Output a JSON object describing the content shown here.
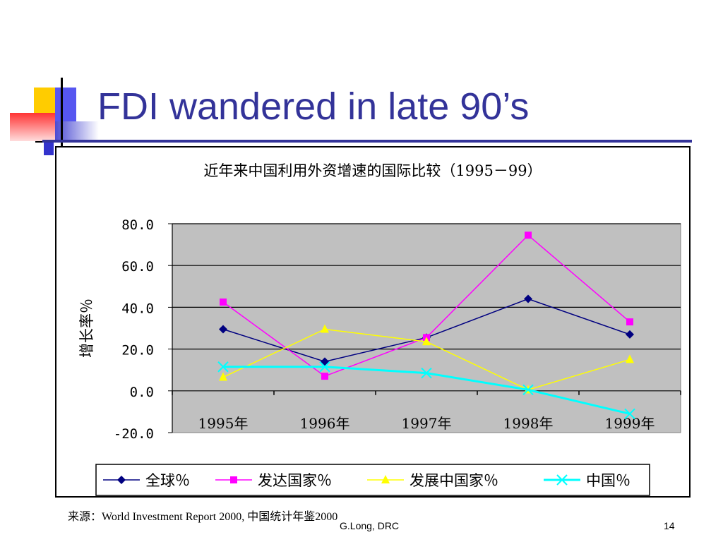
{
  "slide": {
    "title": "FDI wandered in late 90’s",
    "source_note": "来源：World Investment Report 2000,  中国统计年鉴2000",
    "footer_author": "G.Long, DRC",
    "page_number": "14",
    "colors": {
      "title": "#333399",
      "deco_yellow": "#ffcc00",
      "deco_blue": "#3333cc",
      "deco_red": "#ff3333"
    }
  },
  "chart_data": {
    "type": "line",
    "title": "近年来中国利用外资增速的国际比较（1995－99）",
    "xlabel": "",
    "ylabel": "增长率％",
    "categories": [
      "1995年",
      "1996年",
      "1997年",
      "1998年",
      "1999年"
    ],
    "ylim": [
      -20,
      80
    ],
    "yticks": [
      "80.0",
      "60.0",
      "40.0",
      "20.0",
      "0.0",
      "-20.0"
    ],
    "ytick_values": [
      80,
      60,
      40,
      20,
      0,
      -20
    ],
    "grid": true,
    "legend_position": "bottom",
    "plot_background": "#c0c0c0",
    "series": [
      {
        "name": "全球％",
        "values": [
          29.5,
          14,
          25.5,
          44,
          27
        ],
        "color": "#000080",
        "marker": "diamond"
      },
      {
        "name": "发达国家％",
        "values": [
          42.5,
          7,
          25.5,
          74.5,
          33
        ],
        "color": "#ff00ff",
        "marker": "square"
      },
      {
        "name": "发展中国家％",
        "values": [
          6.5,
          29.5,
          23.5,
          0.5,
          15
        ],
        "color": "#ffff00",
        "marker": "triangle"
      },
      {
        "name": "中国％",
        "values": [
          11.5,
          11.5,
          8.5,
          0.5,
          -11
        ],
        "color": "#00ffff",
        "marker": "x"
      }
    ]
  }
}
